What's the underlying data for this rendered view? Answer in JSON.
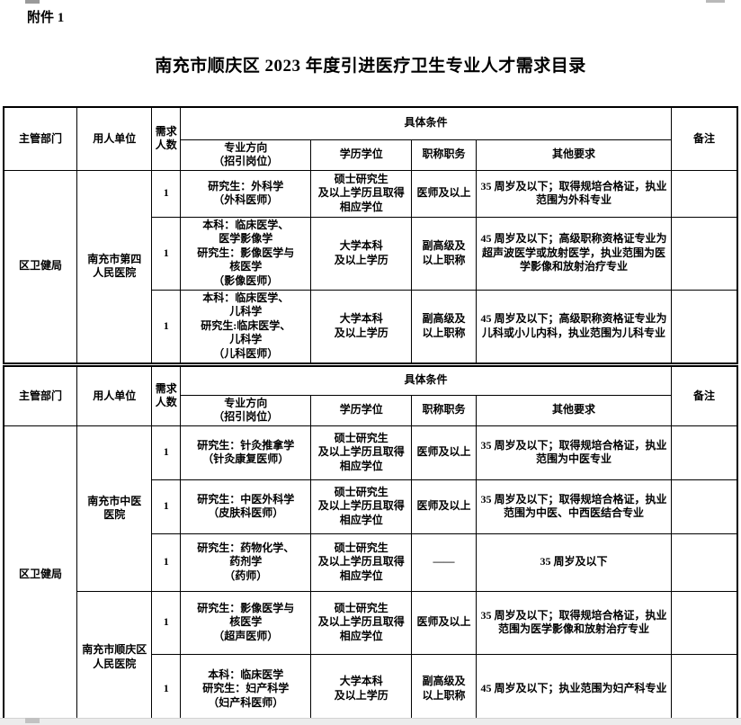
{
  "page": {
    "attachment_label": "附件 1",
    "title": "南充市顺庆区 2023 年度引进医疗卫生专业人才需求目录"
  },
  "headers": {
    "dept": "主管部门",
    "employer": "用人单位",
    "count": "需求\n人数",
    "conditions_group": "具体条件",
    "major": "专业方向\n（招引岗位）",
    "degree": "学历学位",
    "title": "职称职务",
    "other": "其他要求",
    "remark": "备注"
  },
  "table1": {
    "dept": "区卫健局",
    "employer": "南充市第四\n人民医院",
    "rows": [
      {
        "count": "1",
        "major": "研究生：外科学\n（外科医师）",
        "degree": "硕士研究生\n及以上学历且取得\n相应学位",
        "title": "医师及以上",
        "other": "35 周岁及以下；取得规培合格证，执业范围为外科专业",
        "remark": ""
      },
      {
        "count": "1",
        "major": "本科：临床医学、\n医学影像学\n研究生：影像医学与\n核医学\n（影像医师）",
        "degree": "大学本科\n及以上学历",
        "title": "副高级及\n以上职称",
        "other": "45 周岁及以下；高级职称资格证专业为超声波医学或放射医学，执业范围为医学影像和放射治疗专业",
        "remark": ""
      },
      {
        "count": "1",
        "major": "本科：临床医学、\n儿科学\n研究生:临床医学、\n儿科学\n（儿科医师）",
        "degree": "大学本科\n及以上学历",
        "title": "副高级及\n以上职称",
        "other": "45 周岁及以下；高级职称资格证专业为儿科或小儿内科，执业范围为儿科专业",
        "remark": ""
      }
    ]
  },
  "table2": {
    "dept": "区卫健局",
    "employer1": "南充市中医\n医院",
    "employer2": "南充市顺庆区\n人民医院",
    "rows": [
      {
        "count": "1",
        "major": "研究生：针灸推拿学\n（针灸康复医师）",
        "degree": "硕士研究生\n及以上学历且取得\n相应学位",
        "title": "医师及以上",
        "other": "35 周岁及以下；取得规培合格证，执业范围为中医专业",
        "remark": ""
      },
      {
        "count": "1",
        "major": "研究生：中医外科学\n（皮肤科医师）",
        "degree": "硕士研究生\n及以上学历且取得\n相应学位",
        "title": "医师及以上",
        "other": "35 周岁及以下；取得规培合格证，执业范围为中医、中西医结合专业",
        "remark": ""
      },
      {
        "count": "1",
        "major": "研究生：药物化学、\n药剂学\n（药师）",
        "degree": "硕士研究生\n及以上学历且取得\n相应学位",
        "title": "——",
        "other": "35 周岁及以下",
        "remark": ""
      },
      {
        "count": "1",
        "major": "研究生：影像医学与\n核医学\n（超声医师）",
        "degree": "硕士研究生\n及以上学历且取得\n相应学位",
        "title": "医师及以上",
        "other": "35 周岁及以下；取得规培合格证，执业范围为医学影像和放射治疗专业",
        "remark": ""
      },
      {
        "count": "1",
        "major": "本科：临床医学\n研究生：妇产科学\n（妇产科医师）",
        "degree": "大学本科\n及以上学历",
        "title": "副高级及\n以上职称",
        "other": "45 周岁及以下；执业范围为妇产科专业",
        "remark": ""
      }
    ]
  }
}
